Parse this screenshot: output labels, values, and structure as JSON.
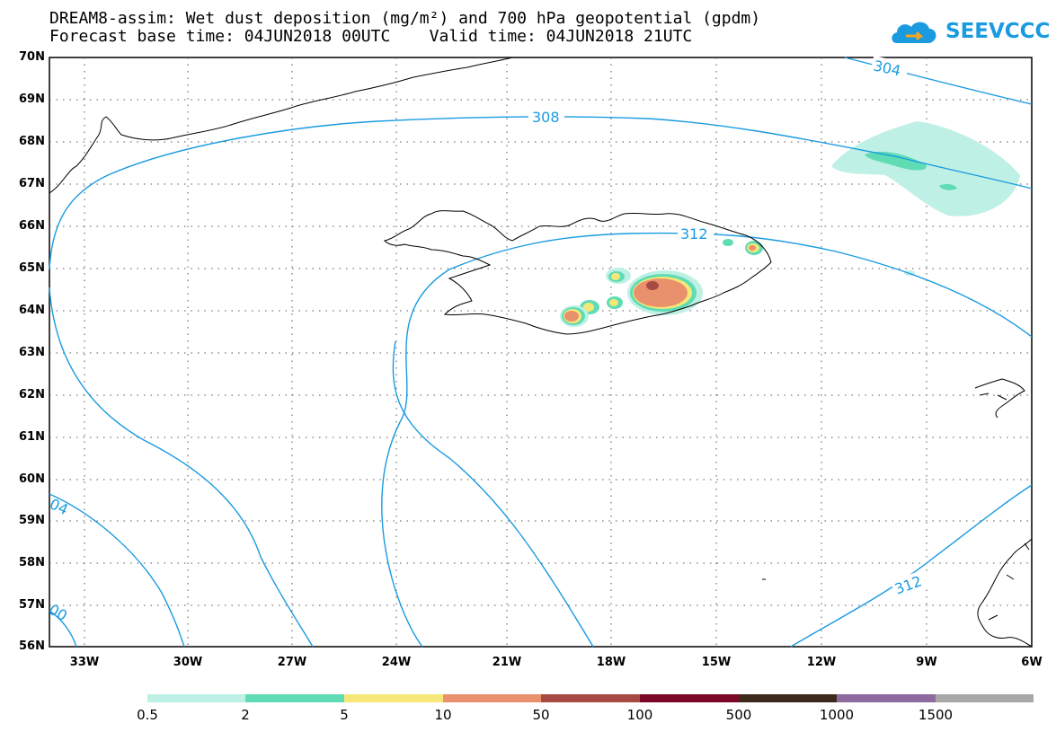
{
  "title_line1": "DREAM8-assim: Wet dust deposition (mg/m²) and 700 hPa geopotential (gpdm)",
  "title_line2": "Forecast base time: 04JUN2018 00UTC    Valid time: 04JUN2018 21UTC",
  "logo_text": "SEEVCCC",
  "lat_labels": [
    "70N",
    "69N",
    "68N",
    "67N",
    "66N",
    "65N",
    "64N",
    "63N",
    "62N",
    "61N",
    "60N",
    "59N",
    "58N",
    "57N",
    "56N"
  ],
  "lon_labels": [
    "33W",
    "30W",
    "27W",
    "24W",
    "21W",
    "18W",
    "15W",
    "12W",
    "9W",
    "6W"
  ],
  "contour_labels": [
    "304",
    "308",
    "312",
    "312",
    "04",
    "00"
  ],
  "legend": {
    "colors": [
      "#bff0e6",
      "#5fdcb4",
      "#f5e878",
      "#e8916c",
      "#a84a44",
      "#7a0a28",
      "#3d2a1c",
      "#8e6a9e",
      "#a8a8a8"
    ],
    "labels": [
      "0.5",
      "2",
      "5",
      "10",
      "50",
      "100",
      "500",
      "1000",
      "1500"
    ]
  }
}
